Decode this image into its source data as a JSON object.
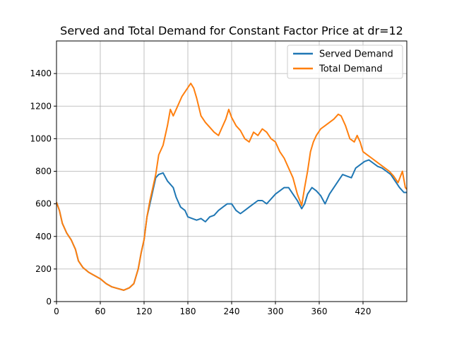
{
  "chart_data": {
    "type": "line",
    "title": "Served and Total Demand for Constant Factor Price at dr=12",
    "xlabel": "",
    "ylabel": "",
    "xlim": [
      0,
      480
    ],
    "ylim": [
      0,
      1600
    ],
    "xticks": [
      0,
      60,
      120,
      180,
      240,
      300,
      360,
      420
    ],
    "yticks": [
      0,
      200,
      400,
      600,
      800,
      1000,
      1200,
      1400
    ],
    "grid": true,
    "legend_position": "top-right",
    "series": [
      {
        "name": "Served Demand",
        "color": "#1f77b4",
        "points": [
          [
            0,
            610
          ],
          [
            4,
            560
          ],
          [
            8,
            480
          ],
          [
            14,
            420
          ],
          [
            20,
            380
          ],
          [
            26,
            320
          ],
          [
            30,
            250
          ],
          [
            36,
            210
          ],
          [
            44,
            180
          ],
          [
            52,
            160
          ],
          [
            60,
            140
          ],
          [
            68,
            110
          ],
          [
            76,
            90
          ],
          [
            84,
            80
          ],
          [
            92,
            70
          ],
          [
            100,
            85
          ],
          [
            106,
            110
          ],
          [
            112,
            200
          ],
          [
            116,
            300
          ],
          [
            120,
            380
          ],
          [
            124,
            520
          ],
          [
            128,
            600
          ],
          [
            132,
            680
          ],
          [
            136,
            760
          ],
          [
            140,
            780
          ],
          [
            146,
            790
          ],
          [
            152,
            740
          ],
          [
            156,
            720
          ],
          [
            160,
            700
          ],
          [
            164,
            640
          ],
          [
            170,
            580
          ],
          [
            176,
            560
          ],
          [
            180,
            520
          ],
          [
            186,
            510
          ],
          [
            192,
            500
          ],
          [
            198,
            510
          ],
          [
            204,
            490
          ],
          [
            210,
            520
          ],
          [
            216,
            530
          ],
          [
            222,
            560
          ],
          [
            228,
            580
          ],
          [
            234,
            600
          ],
          [
            240,
            600
          ],
          [
            246,
            560
          ],
          [
            252,
            540
          ],
          [
            258,
            560
          ],
          [
            264,
            580
          ],
          [
            270,
            600
          ],
          [
            276,
            620
          ],
          [
            282,
            620
          ],
          [
            288,
            600
          ],
          [
            294,
            630
          ],
          [
            300,
            660
          ],
          [
            306,
            680
          ],
          [
            312,
            700
          ],
          [
            318,
            700
          ],
          [
            324,
            660
          ],
          [
            330,
            620
          ],
          [
            336,
            570
          ],
          [
            340,
            600
          ],
          [
            344,
            660
          ],
          [
            350,
            700
          ],
          [
            356,
            680
          ],
          [
            362,
            650
          ],
          [
            368,
            600
          ],
          [
            374,
            660
          ],
          [
            380,
            700
          ],
          [
            386,
            740
          ],
          [
            392,
            780
          ],
          [
            398,
            770
          ],
          [
            404,
            760
          ],
          [
            410,
            820
          ],
          [
            416,
            840
          ],
          [
            422,
            860
          ],
          [
            428,
            870
          ],
          [
            434,
            850
          ],
          [
            440,
            830
          ],
          [
            446,
            820
          ],
          [
            452,
            800
          ],
          [
            458,
            780
          ],
          [
            464,
            740
          ],
          [
            470,
            700
          ],
          [
            476,
            670
          ],
          [
            480,
            670
          ]
        ]
      },
      {
        "name": "Total Demand",
        "color": "#ff7f0e",
        "points": [
          [
            0,
            610
          ],
          [
            4,
            560
          ],
          [
            8,
            480
          ],
          [
            14,
            420
          ],
          [
            20,
            380
          ],
          [
            26,
            320
          ],
          [
            30,
            250
          ],
          [
            36,
            210
          ],
          [
            44,
            180
          ],
          [
            52,
            160
          ],
          [
            60,
            140
          ],
          [
            68,
            110
          ],
          [
            76,
            90
          ],
          [
            84,
            80
          ],
          [
            92,
            70
          ],
          [
            100,
            85
          ],
          [
            106,
            110
          ],
          [
            112,
            200
          ],
          [
            116,
            300
          ],
          [
            120,
            380
          ],
          [
            124,
            520
          ],
          [
            128,
            620
          ],
          [
            132,
            700
          ],
          [
            136,
            780
          ],
          [
            140,
            900
          ],
          [
            146,
            960
          ],
          [
            152,
            1080
          ],
          [
            156,
            1180
          ],
          [
            160,
            1140
          ],
          [
            166,
            1200
          ],
          [
            172,
            1260
          ],
          [
            178,
            1300
          ],
          [
            184,
            1340
          ],
          [
            188,
            1310
          ],
          [
            192,
            1250
          ],
          [
            198,
            1140
          ],
          [
            204,
            1100
          ],
          [
            210,
            1070
          ],
          [
            216,
            1040
          ],
          [
            222,
            1020
          ],
          [
            226,
            1060
          ],
          [
            232,
            1120
          ],
          [
            236,
            1180
          ],
          [
            240,
            1130
          ],
          [
            246,
            1080
          ],
          [
            252,
            1050
          ],
          [
            258,
            1000
          ],
          [
            264,
            980
          ],
          [
            270,
            1040
          ],
          [
            276,
            1020
          ],
          [
            282,
            1060
          ],
          [
            288,
            1040
          ],
          [
            294,
            1000
          ],
          [
            300,
            980
          ],
          [
            306,
            920
          ],
          [
            312,
            880
          ],
          [
            318,
            820
          ],
          [
            324,
            760
          ],
          [
            330,
            660
          ],
          [
            336,
            590
          ],
          [
            340,
            700
          ],
          [
            344,
            800
          ],
          [
            348,
            920
          ],
          [
            352,
            980
          ],
          [
            356,
            1020
          ],
          [
            362,
            1060
          ],
          [
            368,
            1080
          ],
          [
            374,
            1100
          ],
          [
            380,
            1120
          ],
          [
            386,
            1150
          ],
          [
            390,
            1140
          ],
          [
            396,
            1080
          ],
          [
            402,
            1000
          ],
          [
            408,
            980
          ],
          [
            412,
            1020
          ],
          [
            416,
            980
          ],
          [
            420,
            920
          ],
          [
            426,
            900
          ],
          [
            432,
            880
          ],
          [
            438,
            860
          ],
          [
            444,
            840
          ],
          [
            450,
            820
          ],
          [
            456,
            800
          ],
          [
            462,
            770
          ],
          [
            468,
            730
          ],
          [
            474,
            800
          ],
          [
            478,
            700
          ],
          [
            480,
            690
          ]
        ]
      }
    ]
  }
}
